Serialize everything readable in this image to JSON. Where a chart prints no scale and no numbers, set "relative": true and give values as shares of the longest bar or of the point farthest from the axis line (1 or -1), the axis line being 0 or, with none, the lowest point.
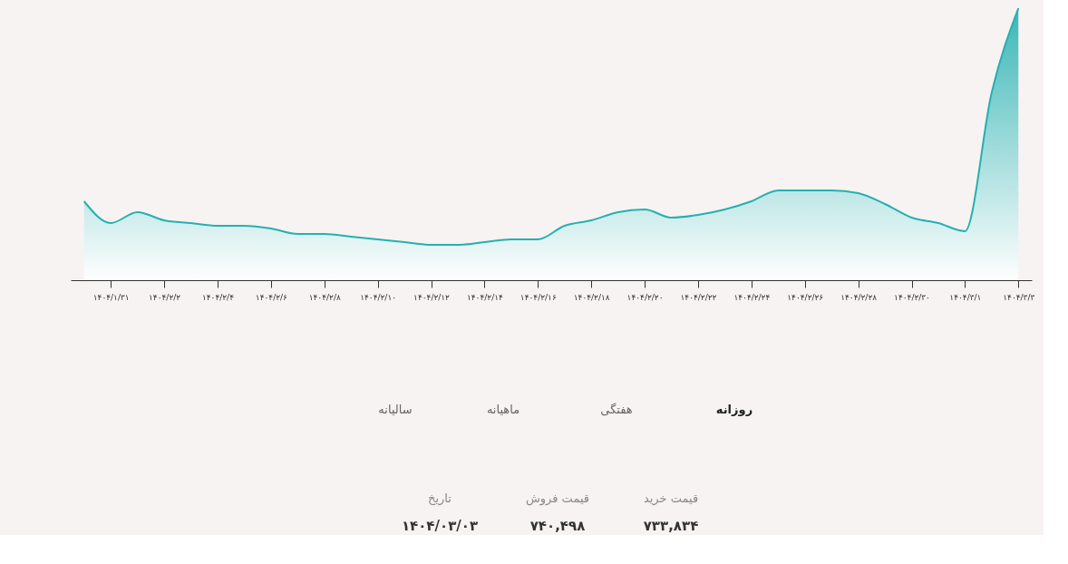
{
  "chart_data": {
    "type": "area",
    "relative": true,
    "categories": [
      null,
      "۱۴۰۴/۱/۳۱",
      null,
      "۱۴۰۴/۲/۲",
      null,
      "۱۴۰۴/۲/۴",
      null,
      "۱۴۰۴/۲/۶",
      null,
      "۱۴۰۴/۲/۸",
      null,
      "۱۴۰۴/۲/۱۰",
      null,
      "۱۴۰۴/۲/۱۲",
      null,
      "۱۴۰۴/۲/۱۴",
      null,
      "۱۴۰۴/۲/۱۶",
      null,
      "۱۴۰۴/۲/۱۸",
      null,
      "۱۴۰۴/۲/۲۰",
      null,
      "۱۴۰۴/۲/۲۲",
      null,
      "۱۴۰۴/۲/۲۴",
      null,
      "۱۴۰۴/۲/۲۶",
      null,
      "۱۴۰۴/۲/۲۸",
      null,
      "۱۴۰۴/۲/۳۰",
      null,
      "۱۴۰۴/۳/۱",
      null,
      "۱۴۰۴/۳/۳"
    ],
    "series": [
      {
        "color": "#26b0b0",
        "values": [
          0.29,
          0.21,
          0.25,
          0.22,
          0.21,
          0.2,
          0.2,
          0.19,
          0.17,
          0.17,
          0.16,
          0.15,
          0.14,
          0.13,
          0.13,
          0.14,
          0.15,
          0.15,
          0.2,
          0.22,
          0.25,
          0.26,
          0.23,
          0.24,
          0.26,
          0.29,
          0.33,
          0.33,
          0.33,
          0.32,
          0.28,
          0.23,
          0.21,
          0.18,
          0.69,
          1
        ]
      }
    ],
    "grid": false,
    "annotations": [
      "روزانه",
      "هفتگی",
      "ماهیانه",
      "سالیانه",
      "قیمت خرید",
      "قیمت فروش",
      "تاریخ",
      "۷۳۳,۸۳۴",
      "۷۴۰,۴۹۸",
      "۱۴۰۴/۰۳/۰۳"
    ]
  }
}
